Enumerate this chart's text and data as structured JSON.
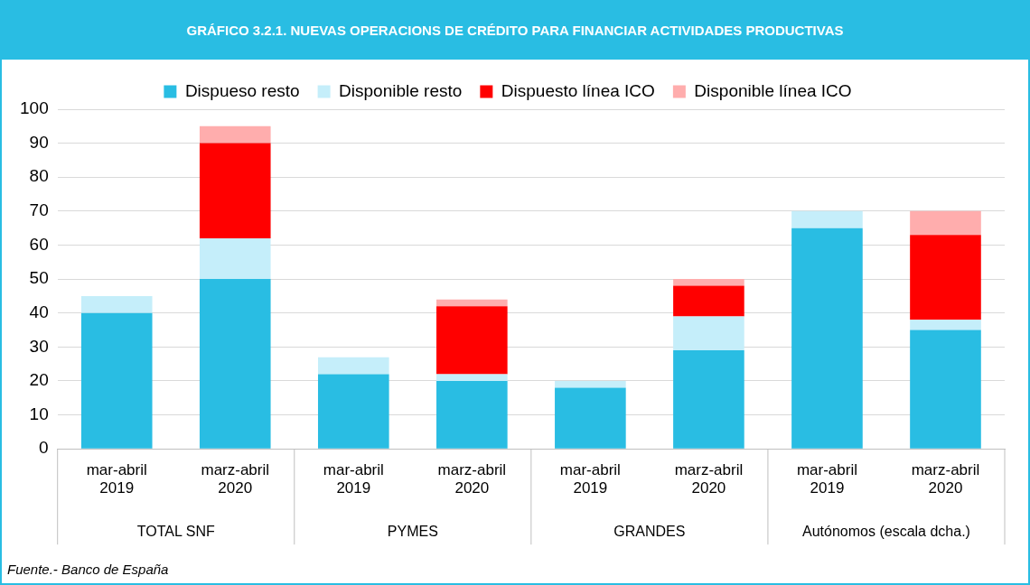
{
  "chart_data": {
    "type": "bar",
    "title": "GRÁFICO 3.2.1. NUEVAS OPERACIONS DE CRÉDITO PARA FINANCIAR ACTIVIDADES PRODUCTIVAS",
    "categories": [
      "mar-abril 2019",
      "marz-abril 2020",
      "mar-abril 2019",
      "marz-abril 2020",
      "mar-abril 2019",
      "marz-abril 2020",
      "mar-abril 2019",
      "marz-abril 2020"
    ],
    "stacked": true,
    "series": [
      {
        "name": "Dispueso resto",
        "color": "#29bde3",
        "values": [
          40,
          50,
          22,
          20,
          18,
          29,
          65,
          35
        ]
      },
      {
        "name": "Disponible resto",
        "color": "#c5eefa",
        "values": [
          5,
          12,
          5,
          2,
          2,
          10,
          5,
          3
        ]
      },
      {
        "name": "Dispuesto línea ICO",
        "color": "#ff0000",
        "values": [
          0,
          28,
          0,
          20,
          0,
          9,
          0,
          25
        ]
      },
      {
        "name": "Disponible línea ICO",
        "color": "#ffadad",
        "values": [
          0,
          5,
          0,
          2,
          0,
          2,
          0,
          7
        ]
      }
    ],
    "ylim": [
      0,
      100
    ],
    "yticks": [
      0,
      10,
      20,
      30,
      40,
      50,
      60,
      70,
      80,
      90,
      100
    ],
    "grid": "y",
    "legend": "top",
    "annotations": [
      "TOTAL SNF",
      "PYMES",
      "GRANDES",
      "Autónomos (escala dcha.)",
      "Fuente.- Banco de España"
    ]
  }
}
